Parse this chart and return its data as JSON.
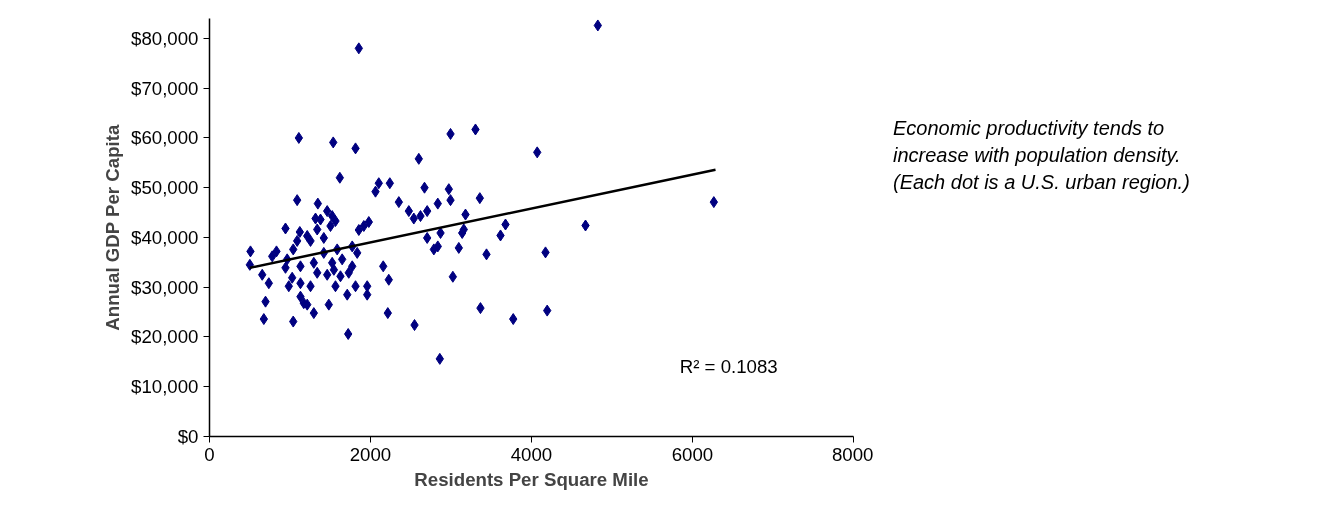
{
  "chart_data": {
    "type": "scatter",
    "xlabel": "Residents Per Square Mile",
    "ylabel": "Annual GDP Per Capita",
    "xlim": [
      0,
      8000
    ],
    "xticks": [
      0,
      2000,
      4000,
      6000,
      8000
    ],
    "ylim": [
      0,
      84000
    ],
    "yticks": [
      {
        "value": 0,
        "label": "$0"
      },
      {
        "value": 10000,
        "label": "$10,000"
      },
      {
        "value": 20000,
        "label": "$20,000"
      },
      {
        "value": 30000,
        "label": "$30,000"
      },
      {
        "value": 40000,
        "label": "$40,000"
      },
      {
        "value": 50000,
        "label": "$50,000"
      },
      {
        "value": 60000,
        "label": "$60,000"
      },
      {
        "value": 70000,
        "label": "$70,000"
      },
      {
        "value": 80000,
        "label": "$80,000"
      }
    ],
    "grid": false,
    "annotations": [
      "R² = 0.1083",
      "Economic productivity tends to increase with population density. (Each dot is a U.S. urban region.)"
    ],
    "series": [
      {
        "color": "#000080",
        "marker": "diamond",
        "x": [
          1855,
          1110,
          1537,
          1814,
          2994,
          3304,
          2600,
          1619,
          2103,
          2240,
          2062,
          1089,
          2671,
          2973,
          2994,
          3358,
          2352,
          1346,
          2476,
          2538,
          2621,
          2704,
          2836,
          3180,
          1462,
          1524,
          1565,
          1317,
          944,
          1979,
          1917,
          1855,
          3677,
          3615,
          3159,
          3139,
          2704,
          2870,
          2787,
          2836,
          3097,
          3441,
          509,
          501,
          779,
          832,
          655,
          737,
          696,
          675,
          944,
          985,
          1040,
          1130,
          1171,
          1214,
          1296,
          1482,
          1711,
          1814,
          1959,
          1959,
          2158,
          2227,
          2215,
          1723,
          2547,
          2861,
          3023,
          3366,
          3773,
          4071,
          4824,
          6265,
          4671,
          4174,
          4195,
          1122,
          1214,
          1338,
          1255,
          1089,
          1040,
          1420,
          1524,
          1545,
          1462,
          1627,
          1565,
          1338,
          1296,
          1773,
          1730,
          1835,
          1773,
          965,
          1130,
          1027,
          1255,
          1420,
          1586,
          1379,
          1503,
          1648,
          1130
        ],
        "values": [
          78000,
          60000,
          59100,
          57900,
          60800,
          61700,
          55800,
          52000,
          50900,
          50900,
          49200,
          47500,
          50000,
          49700,
          47500,
          47900,
          47100,
          46800,
          45300,
          43800,
          44300,
          45300,
          46800,
          44600,
          45300,
          44300,
          43300,
          43800,
          41800,
          43100,
          42300,
          41500,
          42600,
          40400,
          41600,
          40900,
          39900,
          40900,
          37600,
          38200,
          37900,
          36600,
          37200,
          34500,
          36200,
          37200,
          32500,
          30800,
          27100,
          23600,
          33900,
          30200,
          23100,
          28100,
          26800,
          26500,
          24800,
          26500,
          28500,
          30200,
          30200,
          28500,
          34200,
          31500,
          24800,
          20600,
          22400,
          15600,
          32100,
          25800,
          23600,
          57100,
          82600,
          47100,
          42400,
          37000,
          25300,
          41100,
          40300,
          41600,
          39300,
          39300,
          37600,
          39900,
          34900,
          33500,
          32500,
          32200,
          30200,
          32900,
          34900,
          34200,
          32900,
          36900,
          38200,
          35600,
          34200,
          31900,
          30200,
          36900,
          37600,
          43600,
          42300,
          35600,
          30800
        ]
      },
      {
        "type": "line",
        "color": "#000000",
        "line_style": "solid",
        "marker": "none",
        "x": [
          501,
          6286
        ],
        "values": [
          33900,
          53600
        ]
      }
    ]
  }
}
